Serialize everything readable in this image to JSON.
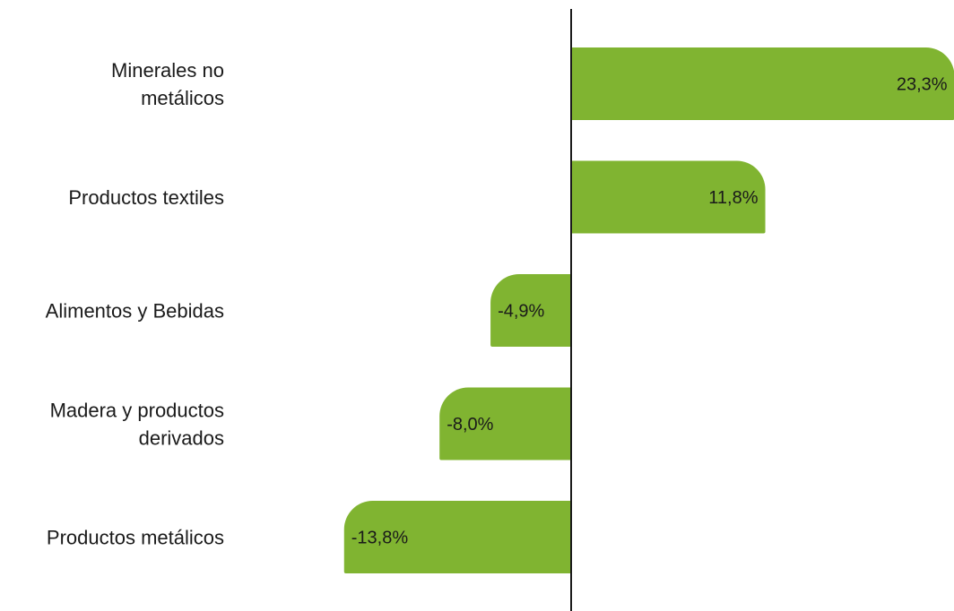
{
  "chart_data": {
    "type": "bar",
    "orientation": "horizontal",
    "bar_color": "#80b431",
    "axis_color": "#1a1a1a",
    "categories": [
      [
        "Minerales no",
        "metálicos"
      ],
      [
        "Productos textiles"
      ],
      [
        "Alimentos y Bebidas"
      ],
      [
        "Madera y productos",
        "derivados"
      ],
      [
        "Productos metálicos"
      ]
    ],
    "values": [
      23.3,
      11.8,
      -4.9,
      -8.0,
      -13.8
    ],
    "value_labels": [
      "23,3%",
      "11,8%",
      "-4,9%",
      "-8,0%",
      "-13,8%"
    ],
    "grid": false,
    "legend": "none"
  }
}
